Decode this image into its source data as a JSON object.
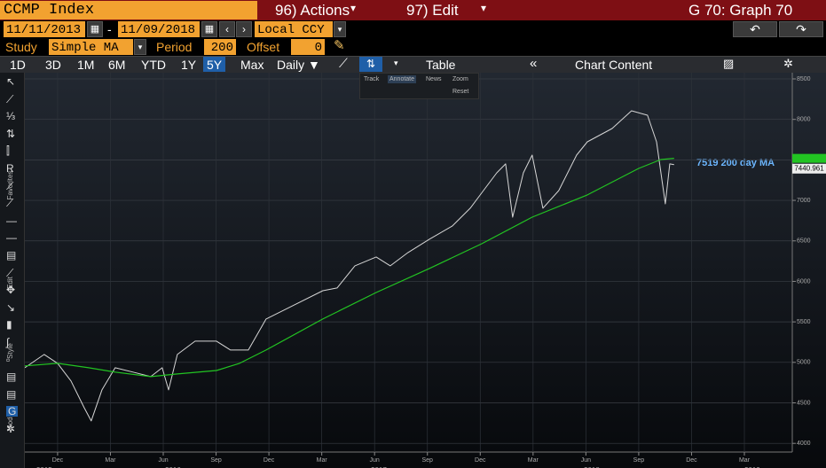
{
  "header": {
    "security": "CCMP Index",
    "actions": "96) Actions",
    "edit": "97) Edit",
    "graph": "G 70: Graph 70"
  },
  "range": {
    "start": "11/11/2013",
    "sep": "-",
    "end": "11/09/2018",
    "currency": "Local CCY"
  },
  "study": {
    "label": "Study",
    "value": "Simple MA",
    "period_label": "Period",
    "period": "200",
    "offset_label": "Offset",
    "offset": "0"
  },
  "toolbar": {
    "periods": [
      "1D",
      "3D",
      "1M",
      "6M",
      "YTD",
      "1Y",
      "5Y",
      "Max"
    ],
    "active": "5Y",
    "frequency": "Daily ▼",
    "table": "Table",
    "chart_content": "Chart Content"
  },
  "chart_tools": [
    "Track",
    "Annotate",
    "News",
    "Zoom",
    "Reset"
  ],
  "side_labels": [
    "Favorites",
    "Edit",
    "Style",
    "Modes"
  ],
  "chart_data": {
    "type": "line",
    "annotation": "7519 200 day MA",
    "last_value_label": "7440.961",
    "series": [
      {
        "color": "#d6d6d6",
        "x": [
          -1.86,
          -0.76,
          0,
          0.76,
          1.51,
          1.91,
          2.52,
          3.27,
          4.28,
          5.29,
          5.94,
          6.3,
          6.8,
          7.81,
          9.02,
          9.82,
          10.83,
          11.84,
          13.35,
          15.06,
          15.87,
          16.88,
          18.09,
          18.89,
          19.9,
          21.11,
          22.42,
          23.43,
          24.18,
          24.94,
          25.44,
          25.84,
          26.45,
          26.95,
          27.56,
          28.46,
          29.47,
          30.08,
          31.49,
          32.59,
          33.5,
          34.01,
          34.51,
          34.76,
          35.01
        ],
        "values": [
          4934,
          5098,
          4988,
          4770,
          4440,
          4277,
          4660,
          4934,
          4880,
          4824,
          4934,
          4660,
          5098,
          5262,
          5262,
          5152,
          5152,
          5535,
          5700,
          5885,
          5918,
          6192,
          6301,
          6192,
          6356,
          6520,
          6684,
          6903,
          7121,
          7340,
          7450,
          6793,
          7340,
          7559,
          6903,
          7121,
          7559,
          7723,
          7887,
          8106,
          8051,
          7723,
          6957,
          7450,
          7441
        ]
      },
      {
        "color": "#22c422",
        "x": [
          -1.86,
          0,
          1.76,
          3.27,
          5.29,
          6.8,
          9.02,
          10.33,
          11.84,
          15.06,
          18.09,
          21.11,
          24.08,
          26.95,
          30.08,
          33.0,
          34.26,
          35.01
        ],
        "values": [
          4956,
          4988,
          4934,
          4880,
          4824,
          4857,
          4900,
          4988,
          5152,
          5535,
          5863,
          6159,
          6465,
          6793,
          7067,
          7395,
          7504,
          7519
        ]
      }
    ],
    "xlim": [
      -1.86,
      41.72
    ],
    "ylim": [
      3950,
      8550
    ],
    "yticks": [
      4000,
      4500,
      5000,
      5500,
      6000,
      6500,
      7000,
      7500,
      8000,
      8500
    ],
    "xticks": [
      {
        "value": 0,
        "label": "Dec"
      },
      {
        "value": 3,
        "label": "Mar"
      },
      {
        "value": 6,
        "label": "Jun"
      },
      {
        "value": 9,
        "label": "Sep"
      },
      {
        "value": 12,
        "label": "Dec"
      },
      {
        "value": 15,
        "label": "Mar"
      },
      {
        "value": 18,
        "label": "Jun"
      },
      {
        "value": 21,
        "label": "Sep"
      },
      {
        "value": 24,
        "label": "Dec"
      },
      {
        "value": 27,
        "label": "Mar"
      },
      {
        "value": 30,
        "label": "Jun"
      },
      {
        "value": 33,
        "label": "Sep"
      },
      {
        "value": 36,
        "label": "Dec"
      },
      {
        "value": 39,
        "label": "Mar"
      }
    ],
    "year_ticks": [
      {
        "value": -0.76,
        "label": "2015"
      },
      {
        "value": 6.55,
        "label": "2016"
      },
      {
        "value": 18.24,
        "label": "2017"
      },
      {
        "value": 30.33,
        "label": "2018"
      },
      {
        "value": 39.45,
        "label": "2019"
      }
    ],
    "grid": true
  }
}
